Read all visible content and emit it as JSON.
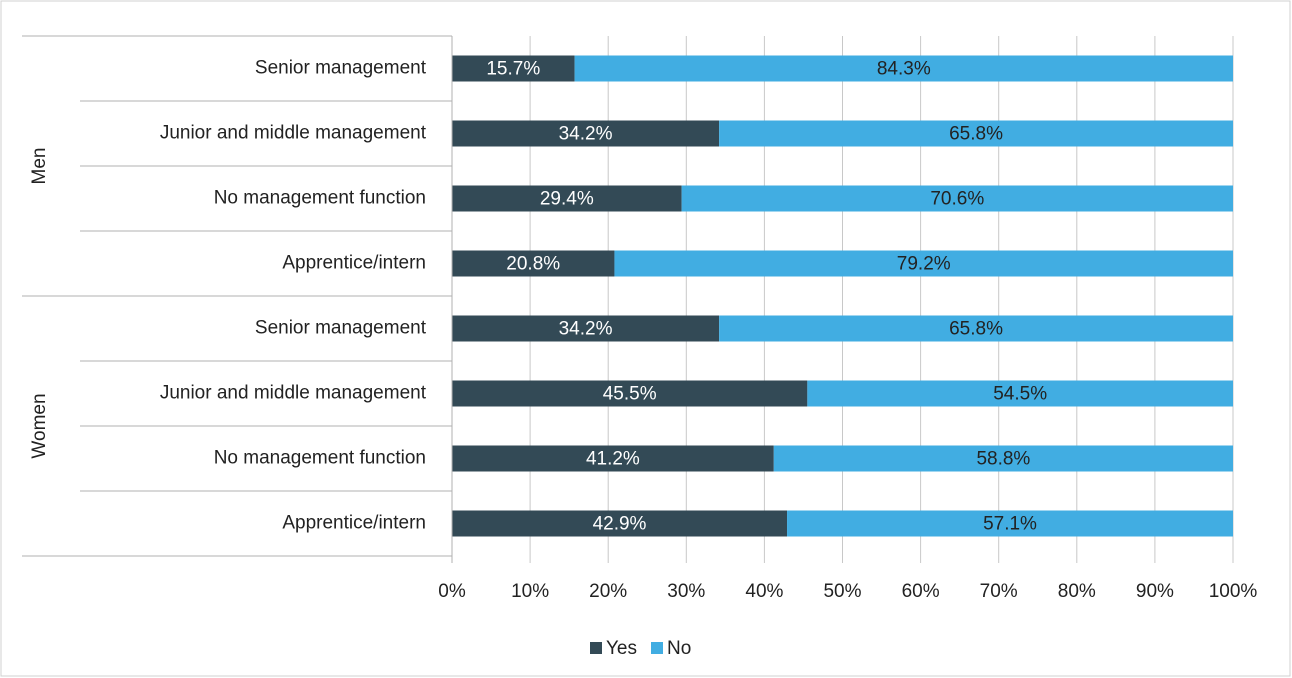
{
  "chart_data": {
    "type": "bar",
    "orientation": "horizontal",
    "stacked": true,
    "groups": [
      {
        "label": "Men",
        "categories": [
          "Senior management",
          "Junior and middle management",
          "No management function",
          "Apprentice/intern"
        ]
      },
      {
        "label": "Women",
        "categories": [
          "Senior management",
          "Junior and middle management",
          "No management function",
          "Apprentice/intern"
        ]
      }
    ],
    "series": [
      {
        "name": "Yes",
        "color": "#334a56",
        "values": [
          15.7,
          34.2,
          29.4,
          20.8,
          34.2,
          45.5,
          41.2,
          42.9
        ],
        "value_labels": [
          "15.7%",
          "34.2%",
          "29.4%",
          "20.8%",
          "34.2%",
          "45.5%",
          "41.2%",
          "42.9%"
        ]
      },
      {
        "name": "No",
        "color": "#41ade2",
        "values": [
          84.3,
          65.8,
          70.6,
          79.2,
          65.8,
          54.5,
          58.8,
          57.1
        ],
        "value_labels": [
          "84.3%",
          "65.8%",
          "70.6%",
          "79.2%",
          "65.8%",
          "54.5%",
          "58.8%",
          "57.1%"
        ]
      }
    ],
    "xlim": [
      0,
      100
    ],
    "xticks": [
      {
        "value": 0,
        "label": "0%"
      },
      {
        "value": 10,
        "label": "10%"
      },
      {
        "value": 20,
        "label": "20%"
      },
      {
        "value": 30,
        "label": "30%"
      },
      {
        "value": 40,
        "label": "40%"
      },
      {
        "value": 50,
        "label": "50%"
      },
      {
        "value": 60,
        "label": "60%"
      },
      {
        "value": 70,
        "label": "70%"
      },
      {
        "value": 80,
        "label": "80%"
      },
      {
        "value": 90,
        "label": "90%"
      },
      {
        "value": 100,
        "label": "100%"
      }
    ],
    "grid": true,
    "legend": "bottom"
  }
}
